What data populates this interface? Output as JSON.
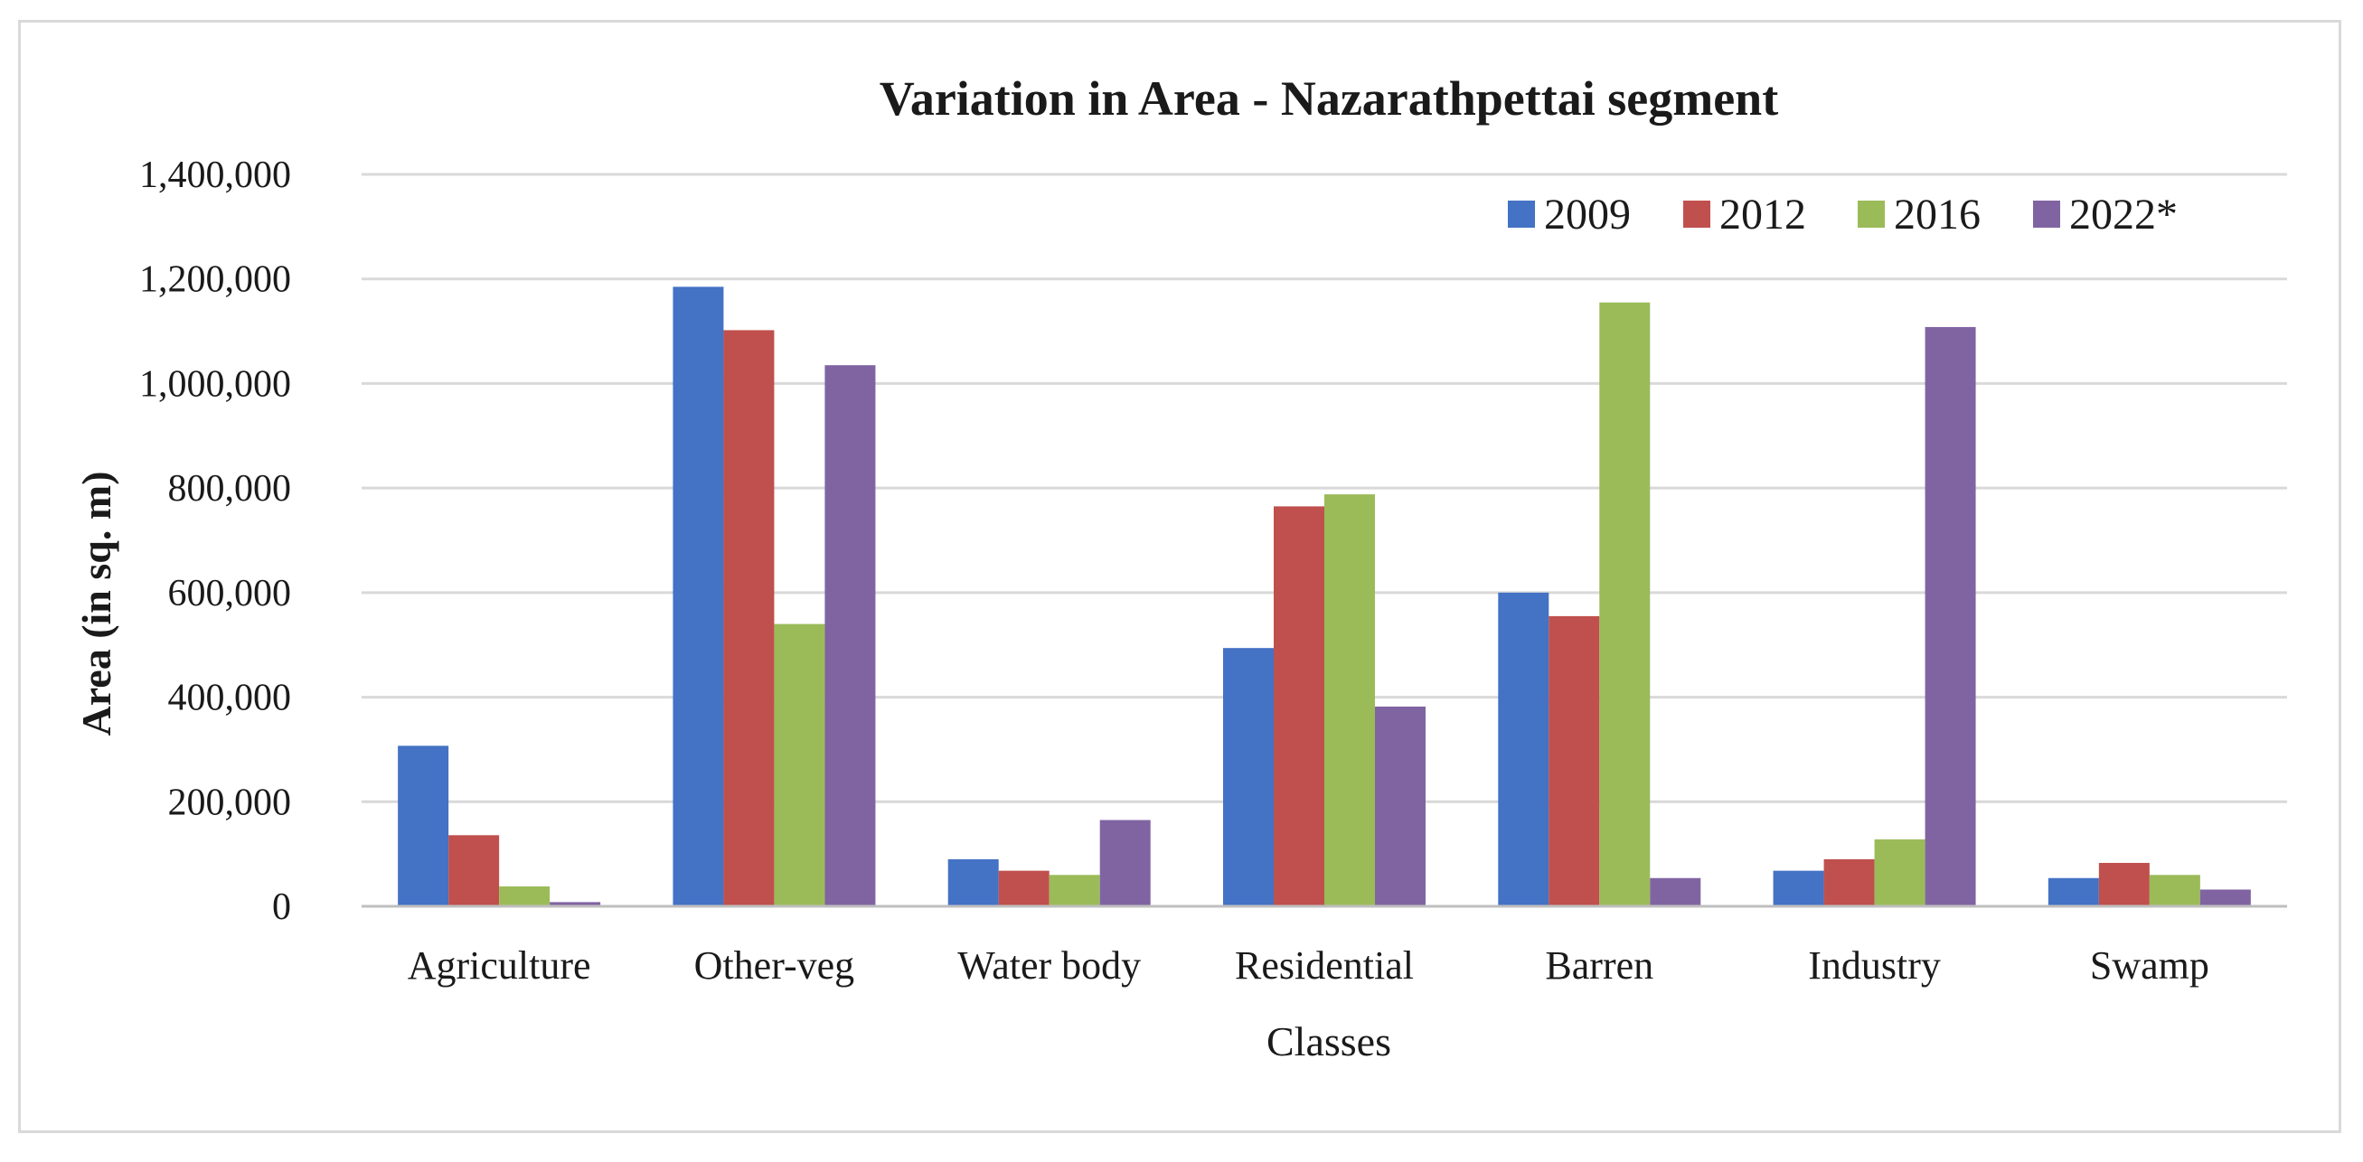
{
  "chart_data": {
    "type": "bar",
    "title": "Variation in Area - Nazarathpettai segment",
    "xlabel": "Classes",
    "ylabel": "Area (in sq. m)",
    "ylim": [
      0,
      1400000
    ],
    "yticks": [
      "0",
      "200,000",
      "400,000",
      "600,000",
      "800,000",
      "1,000,000",
      "1,200,000",
      "1,400,000"
    ],
    "categories": [
      "Agriculture",
      "Other-veg",
      "Water body",
      "Residential",
      "Barren",
      "Industry",
      "Swamp"
    ],
    "series": [
      {
        "name": "2009",
        "color": "#4472c4",
        "values": [
          307000,
          1185000,
          90000,
          494000,
          600000,
          68000,
          54000
        ]
      },
      {
        "name": "2012",
        "color": "#c0504d",
        "values": [
          136000,
          1102000,
          68000,
          765000,
          555000,
          90000,
          83000
        ]
      },
      {
        "name": "2016",
        "color": "#9bbb59",
        "values": [
          38000,
          540000,
          60000,
          788000,
          1155000,
          128000,
          60000
        ]
      },
      {
        "name": "2022*",
        "color": "#8064a2",
        "values": [
          8000,
          1035000,
          165000,
          382000,
          54000,
          1108000,
          32000
        ]
      }
    ],
    "grid": true,
    "legend": "top-right"
  }
}
